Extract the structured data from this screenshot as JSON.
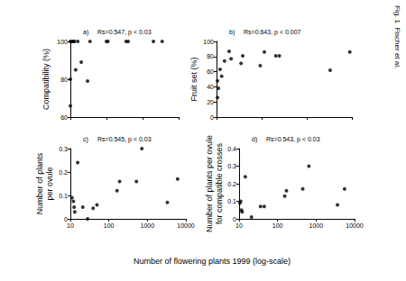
{
  "chart_data": [
    {
      "type": "scatter",
      "title": "a)",
      "annotation": "Rs=0.547, p < 0.03",
      "ylabel": "Compatibility (%)",
      "log": "x",
      "grid": false,
      "tick_labels": "y",
      "color": "#000000",
      "marker": "circle",
      "x": [
        10,
        10,
        10,
        11,
        12,
        13,
        14,
        16,
        20,
        30,
        35,
        100,
        110,
        350,
        400,
        2000,
        3500
      ],
      "values": [
        100,
        80,
        66,
        100,
        100,
        100,
        85,
        100,
        89,
        79,
        100,
        100,
        100,
        100,
        100,
        100,
        100
      ],
      "xlim": [
        10,
        10000
      ],
      "xticks": [
        10,
        100,
        1000,
        10000
      ],
      "ylim": [
        60,
        100
      ],
      "yticks": [
        60,
        80,
        100
      ]
    },
    {
      "type": "scatter",
      "title": "b)",
      "annotation": "Rs=0.643, p < 0.007",
      "ylabel": "Fruit set (%)",
      "log": "x",
      "grid": false,
      "tick_labels": "y",
      "color": "#000000",
      "marker": "circle",
      "x": [
        10.5,
        10.5,
        11,
        12,
        13,
        15,
        19,
        21,
        35,
        38,
        93,
        115,
        206,
        247,
        3300,
        9000
      ],
      "values": [
        48,
        26,
        38,
        63,
        54,
        74,
        87,
        77,
        71,
        81,
        68,
        86,
        81,
        81,
        62,
        86
      ],
      "xlim": [
        10,
        10000
      ],
      "xticks": [
        10,
        100,
        1000,
        10000
      ],
      "ylim": [
        0,
        100
      ],
      "yticks": [
        0,
        20,
        40,
        60,
        80,
        100
      ]
    },
    {
      "type": "scatter",
      "title": "c)",
      "annotation": "Rs=0.545, p < 0.03",
      "ylabel": "Number of plants\nper ovule",
      "log": "x",
      "grid": false,
      "color": "#000000",
      "marker": "circle",
      "x": [
        11,
        12,
        12.5,
        13,
        15.5,
        21,
        28,
        39,
        49,
        163,
        190,
        520,
        720,
        3300,
        6100
      ],
      "values": [
        0.09,
        0.075,
        0.05,
        0.03,
        0.24,
        0.05,
        0.0,
        0.045,
        0.06,
        0.12,
        0.16,
        0.16,
        0.3,
        0.07,
        0.17
      ],
      "xlim": [
        10,
        10000
      ],
      "xticks": [
        10,
        100,
        1000,
        10000
      ],
      "ylim": [
        0,
        0.3
      ],
      "yticks": [
        0,
        0.1,
        0.2,
        0.3
      ]
    },
    {
      "type": "scatter",
      "title": "d)",
      "annotation": "Rs=0.543, p < 0.03",
      "ylabel": "Number of plants per ovule\nfor compatible crosses",
      "log": "x",
      "grid": false,
      "color": "#000000",
      "marker": "circle",
      "x": [
        10.5,
        11,
        11.5,
        12,
        14.5,
        21,
        36,
        45,
        153,
        170,
        450,
        650,
        3600,
        5500
      ],
      "values": [
        0.09,
        0.1,
        0.05,
        0.04,
        0.24,
        0.01,
        0.07,
        0.07,
        0.13,
        0.16,
        0.17,
        0.3,
        0.08,
        0.17
      ],
      "xlim": [
        10,
        10000
      ],
      "xticks": [
        10,
        100,
        1000,
        10000
      ],
      "ylim": [
        0,
        0.4
      ],
      "yticks": [
        0,
        0.1,
        0.2,
        0.3,
        0.4
      ]
    }
  ],
  "figure": {
    "xlabel": "Number of flowering plants 1999 (log-scale)",
    "caption": "Fig. 1  Fischer et al."
  }
}
